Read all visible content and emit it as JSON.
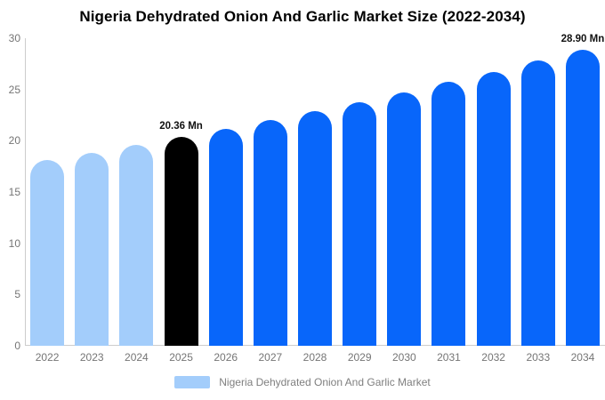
{
  "chart_data": {
    "type": "bar",
    "title": "Nigeria Dehydrated Onion And Garlic Market Size (2022-2034)",
    "unit": "Mn",
    "categories": [
      "2022",
      "2023",
      "2024",
      "2025",
      "2026",
      "2027",
      "2028",
      "2029",
      "2030",
      "2031",
      "2032",
      "2033",
      "2034"
    ],
    "values": [
      18.11,
      18.83,
      19.58,
      20.36,
      21.17,
      22.01,
      22.88,
      23.79,
      24.74,
      25.72,
      26.74,
      27.8,
      28.9
    ],
    "bar_colors": [
      "#a3cdfb",
      "#a3cdfb",
      "#a3cdfb",
      "#000000",
      "#0866fa",
      "#0866fa",
      "#0866fa",
      "#0866fa",
      "#0866fa",
      "#0866fa",
      "#0866fa",
      "#0866fa",
      "#0866fa"
    ],
    "data_labels": [
      "",
      "",
      "",
      "20.36 Mn",
      "",
      "",
      "",
      "",
      "",
      "",
      "",
      "",
      "28.90 Mn"
    ],
    "ylim": [
      0,
      30
    ],
    "yticks": [
      0,
      5,
      10,
      15,
      20,
      25,
      30
    ],
    "grid": false,
    "legend_position": "bottom"
  },
  "legend": {
    "label": "Nigeria Dehydrated Onion And Garlic Market",
    "swatch_color": "#a3cdfb"
  },
  "colors": {
    "axis_line": "#cccccc",
    "tick_text": "#757575",
    "title_text": "#000000",
    "highlight_bar": "#000000",
    "past_bar": "#a3cdfb",
    "forecast_bar": "#0866fa"
  }
}
